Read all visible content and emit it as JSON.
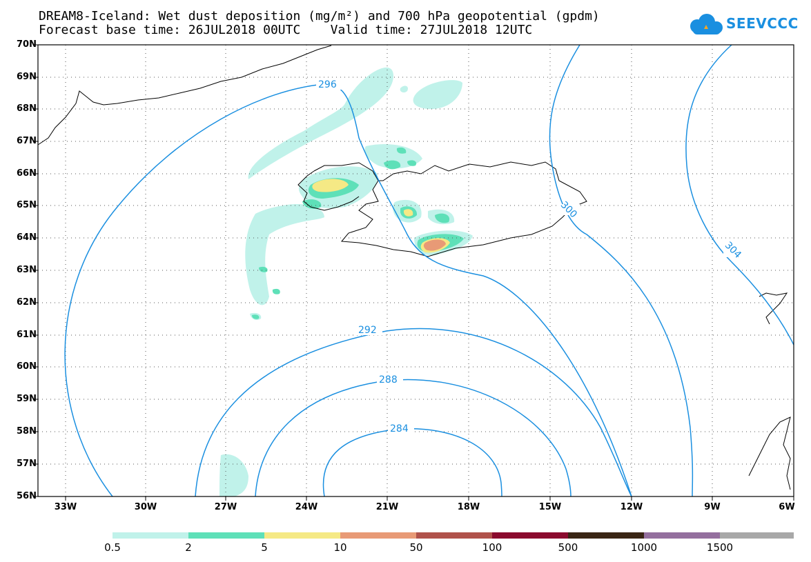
{
  "title_line1": "DREAM8-Iceland: Wet dust deposition (mg/m²) and 700 hPa geopotential (gpdm)",
  "title_line2": "Forecast base time: 26JUL2018 00UTC    Valid time: 27JUL2018 12UTC",
  "logo_text": "SEEVCCC",
  "colors": {
    "contour": "#1a8fe0",
    "coast": "#000000",
    "grid": "#555555"
  },
  "lat_labels": [
    "70N",
    "69N",
    "68N",
    "67N",
    "66N",
    "65N",
    "64N",
    "63N",
    "62N",
    "61N",
    "60N",
    "59N",
    "58N",
    "57N",
    "56N"
  ],
  "lon_labels": [
    "33W",
    "30W",
    "27W",
    "24W",
    "21W",
    "18W",
    "15W",
    "12W",
    "9W",
    "6W"
  ],
  "contour_labels": [
    "296",
    "300",
    "304",
    "292",
    "288",
    "284"
  ],
  "colorbar": {
    "labels": [
      "0.5",
      "2",
      "5",
      "10",
      "50",
      "100",
      "500",
      "1000",
      "1500"
    ],
    "colors": [
      "#c0f2ea",
      "#5ee0b8",
      "#f5e985",
      "#e89a76",
      "#b0524b",
      "#8b0a2e",
      "#3a2515",
      "#946f9e",
      "#a8a8a8"
    ]
  }
}
